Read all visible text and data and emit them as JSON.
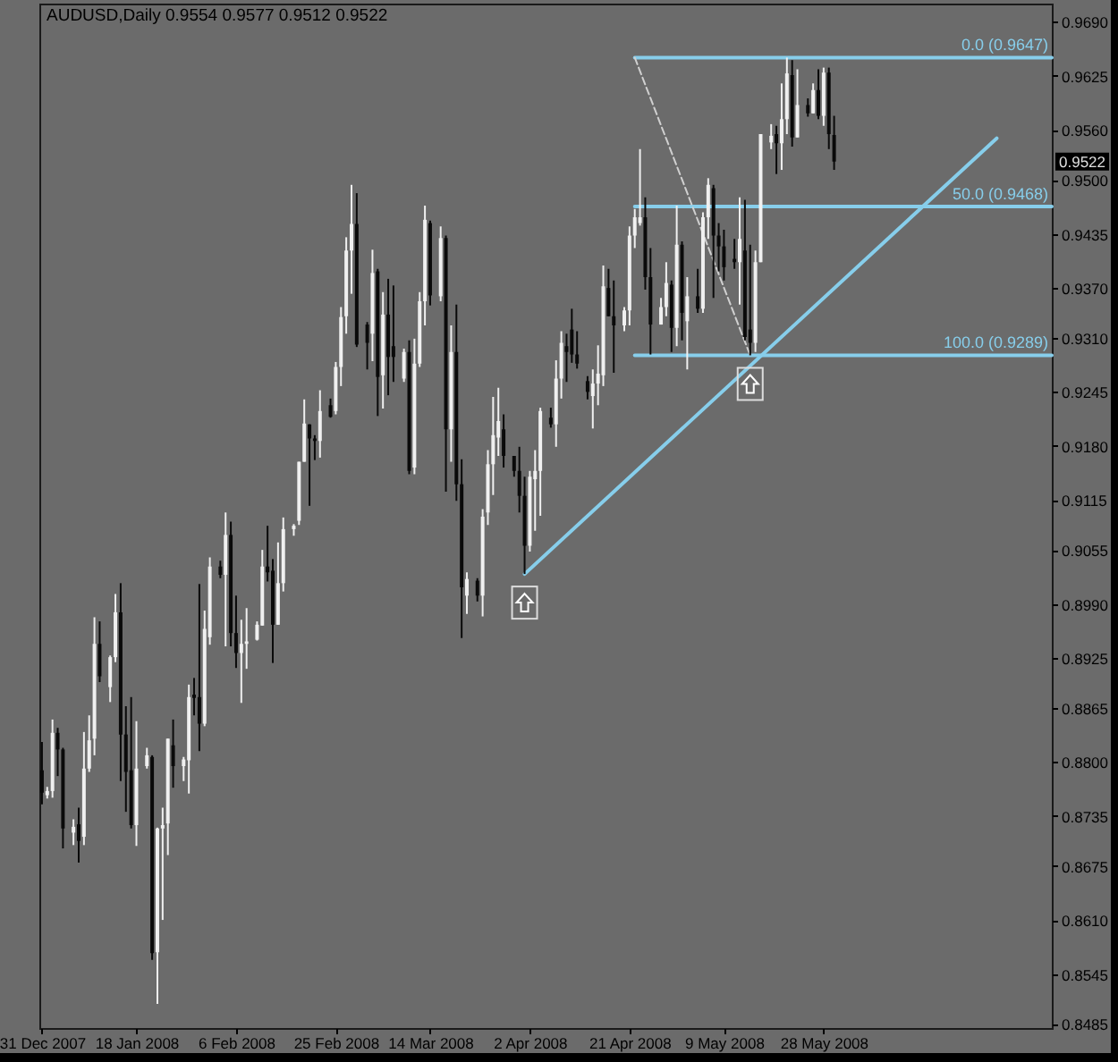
{
  "chart_data": {
    "type": "candlestick",
    "title": "AUDUSD,Daily 0.9554 0.9577 0.9512 0.9522",
    "x": [
      "2007-12-31",
      "2008-01-01",
      "2008-01-02",
      "2008-01-03",
      "2008-01-04",
      "2008-01-06",
      "2008-01-07",
      "2008-01-08",
      "2008-01-09",
      "2008-01-10",
      "2008-01-11",
      "2008-01-13",
      "2008-01-14",
      "2008-01-15",
      "2008-01-16",
      "2008-01-17",
      "2008-01-18",
      "2008-01-20",
      "2008-01-21",
      "2008-01-22",
      "2008-01-23",
      "2008-01-24",
      "2008-01-25",
      "2008-01-27",
      "2008-01-28",
      "2008-01-29",
      "2008-01-30",
      "2008-01-31",
      "2008-02-01",
      "2008-02-03",
      "2008-02-04",
      "2008-02-05",
      "2008-02-06",
      "2008-02-07",
      "2008-02-08",
      "2008-02-10",
      "2008-02-11",
      "2008-02-12",
      "2008-02-13",
      "2008-02-14",
      "2008-02-15",
      "2008-02-17",
      "2008-02-18",
      "2008-02-19",
      "2008-02-20",
      "2008-02-21",
      "2008-02-22",
      "2008-02-24",
      "2008-02-25",
      "2008-02-26",
      "2008-02-27",
      "2008-02-28",
      "2008-02-29",
      "2008-03-02",
      "2008-03-03",
      "2008-03-04",
      "2008-03-05",
      "2008-03-06",
      "2008-03-07",
      "2008-03-09",
      "2008-03-10",
      "2008-03-11",
      "2008-03-12",
      "2008-03-13",
      "2008-03-14",
      "2008-03-16",
      "2008-03-17",
      "2008-03-18",
      "2008-03-19",
      "2008-03-20",
      "2008-03-21",
      "2008-03-23",
      "2008-03-24",
      "2008-03-25",
      "2008-03-26",
      "2008-03-27",
      "2008-03-28",
      "2008-03-30",
      "2008-03-31",
      "2008-04-01",
      "2008-04-02",
      "2008-04-03",
      "2008-04-04",
      "2008-04-06",
      "2008-04-07",
      "2008-04-08",
      "2008-04-09",
      "2008-04-10",
      "2008-04-11",
      "2008-04-13",
      "2008-04-14",
      "2008-04-15",
      "2008-04-16",
      "2008-04-17",
      "2008-04-18",
      "2008-04-20",
      "2008-04-21",
      "2008-04-22",
      "2008-04-23",
      "2008-04-24",
      "2008-04-25",
      "2008-04-27",
      "2008-04-28",
      "2008-04-29",
      "2008-04-30",
      "2008-05-01",
      "2008-05-02",
      "2008-05-04",
      "2008-05-05",
      "2008-05-06",
      "2008-05-07",
      "2008-05-08",
      "2008-05-09",
      "2008-05-11",
      "2008-05-12",
      "2008-05-13",
      "2008-05-14",
      "2008-05-15",
      "2008-05-16",
      "2008-05-18",
      "2008-05-19",
      "2008-05-20",
      "2008-05-21",
      "2008-05-22",
      "2008-05-23",
      "2008-05-25",
      "2008-05-26",
      "2008-05-27",
      "2008-05-28",
      "2008-05-29",
      "2008-05-30"
    ],
    "ohlc": [
      [
        0.879,
        0.8824,
        0.8749,
        0.8763
      ],
      [
        0.876,
        0.877,
        0.8756,
        0.8765
      ],
      [
        0.8765,
        0.8851,
        0.8757,
        0.8835
      ],
      [
        0.8835,
        0.8841,
        0.8783,
        0.8815
      ],
      [
        0.8815,
        0.8817,
        0.8696,
        0.872
      ],
      [
        0.8715,
        0.8731,
        0.87,
        0.8722
      ],
      [
        0.8725,
        0.8745,
        0.8679,
        0.8705
      ],
      [
        0.871,
        0.8836,
        0.87,
        0.8792
      ],
      [
        0.8792,
        0.8856,
        0.8788,
        0.8826
      ],
      [
        0.8828,
        0.8974,
        0.8808,
        0.8942
      ],
      [
        0.8942,
        0.8969,
        0.8896,
        0.8903
      ],
      [
        0.889,
        0.8928,
        0.8872,
        0.8926
      ],
      [
        0.8926,
        0.9002,
        0.892,
        0.898
      ],
      [
        0.898,
        0.9015,
        0.8777,
        0.8833
      ],
      [
        0.8833,
        0.8867,
        0.874,
        0.8788
      ],
      [
        0.879,
        0.8878,
        0.872,
        0.8724
      ],
      [
        0.8724,
        0.8849,
        0.8699,
        0.8792
      ],
      [
        0.8795,
        0.8817,
        0.8792,
        0.8808
      ],
      [
        0.8806,
        0.8808,
        0.8562,
        0.857
      ],
      [
        0.8571,
        0.8721,
        0.8509,
        0.872
      ],
      [
        0.872,
        0.8745,
        0.861,
        0.8724
      ],
      [
        0.8726,
        0.8828,
        0.8688,
        0.8828
      ],
      [
        0.882,
        0.8851,
        0.8769,
        0.8795
      ],
      [
        0.8795,
        0.8806,
        0.8777,
        0.8803
      ],
      [
        0.8802,
        0.8893,
        0.8762,
        0.8878
      ],
      [
        0.8881,
        0.8901,
        0.8856,
        0.8877
      ],
      [
        0.8878,
        0.9014,
        0.8813,
        0.8846
      ],
      [
        0.8846,
        0.8982,
        0.8843,
        0.896
      ],
      [
        0.895,
        0.9046,
        0.8941,
        0.9035
      ],
      [
        0.9035,
        0.9042,
        0.9021,
        0.9025
      ],
      [
        0.9025,
        0.91,
        0.8939,
        0.9073
      ],
      [
        0.9073,
        0.9089,
        0.8939,
        0.8955
      ],
      [
        0.8955,
        0.9,
        0.8913,
        0.8931
      ],
      [
        0.8931,
        0.8971,
        0.8871,
        0.8942
      ],
      [
        0.8942,
        0.8985,
        0.8912,
        0.8945
      ],
      [
        0.8947,
        0.8969,
        0.8946,
        0.8965
      ],
      [
        0.8964,
        0.9055,
        0.8964,
        0.9035
      ],
      [
        0.9035,
        0.9084,
        0.9017,
        0.9028
      ],
      [
        0.903,
        0.9044,
        0.8919,
        0.8965
      ],
      [
        0.8965,
        0.9064,
        0.8965,
        0.9015
      ],
      [
        0.9015,
        0.9094,
        0.9005,
        0.908
      ],
      [
        0.908,
        0.9086,
        0.9072,
        0.9084
      ],
      [
        0.909,
        0.9161,
        0.9085,
        0.9161
      ],
      [
        0.9161,
        0.9236,
        0.9161,
        0.9207
      ],
      [
        0.9206,
        0.9206,
        0.9108,
        0.9189
      ],
      [
        0.9189,
        0.9193,
        0.9163,
        0.9186
      ],
      [
        0.9186,
        0.9247,
        0.9166,
        0.9222
      ],
      [
        0.9229,
        0.9237,
        0.9214,
        0.9215
      ],
      [
        0.9222,
        0.9281,
        0.9218,
        0.9275
      ],
      [
        0.9275,
        0.9347,
        0.9252,
        0.9335
      ],
      [
        0.9336,
        0.9431,
        0.9315,
        0.9415
      ],
      [
        0.9415,
        0.9494,
        0.9363,
        0.9447
      ],
      [
        0.9447,
        0.9484,
        0.9299,
        0.9302
      ],
      [
        0.9326,
        0.9329,
        0.9272,
        0.9304
      ],
      [
        0.9315,
        0.9416,
        0.9282,
        0.9388
      ],
      [
        0.939,
        0.9393,
        0.9216,
        0.9263
      ],
      [
        0.9265,
        0.9365,
        0.9225,
        0.9338
      ],
      [
        0.9338,
        0.9381,
        0.9241,
        0.9287
      ],
      [
        0.93,
        0.9373,
        0.9257,
        0.9287
      ],
      [
        0.9261,
        0.9297,
        0.9257,
        0.9293
      ],
      [
        0.9293,
        0.9307,
        0.9146,
        0.915
      ],
      [
        0.9154,
        0.9309,
        0.9146,
        0.9279
      ],
      [
        0.9279,
        0.9365,
        0.9275,
        0.9354
      ],
      [
        0.9354,
        0.9469,
        0.9325,
        0.9452
      ],
      [
        0.9448,
        0.9451,
        0.9349,
        0.9361
      ],
      [
        0.936,
        0.9444,
        0.9354,
        0.943
      ],
      [
        0.943,
        0.9433,
        0.9125,
        0.92
      ],
      [
        0.92,
        0.9325,
        0.9161,
        0.9293
      ],
      [
        0.9293,
        0.935,
        0.9114,
        0.9134
      ],
      [
        0.9134,
        0.9164,
        0.8949,
        0.901
      ],
      [
        0.9,
        0.9028,
        0.8978,
        0.902
      ],
      [
        0.9018,
        0.9021,
        0.8993,
        0.9
      ],
      [
        0.9,
        0.9104,
        0.8975,
        0.9095
      ],
      [
        0.91,
        0.9175,
        0.9085,
        0.9158
      ],
      [
        0.9158,
        0.9239,
        0.9121,
        0.9193
      ],
      [
        0.919,
        0.925,
        0.9168,
        0.921
      ],
      [
        0.92,
        0.9218,
        0.9154,
        0.9168
      ],
      [
        0.9168,
        0.9168,
        0.9143,
        0.915
      ],
      [
        0.915,
        0.9179,
        0.91,
        0.912
      ],
      [
        0.912,
        0.9143,
        0.9026,
        0.906
      ],
      [
        0.906,
        0.915,
        0.9053,
        0.9143
      ],
      [
        0.914,
        0.9175,
        0.9078,
        0.915
      ],
      [
        0.915,
        0.9226,
        0.9096,
        0.9222
      ],
      [
        0.9214,
        0.9226,
        0.9202,
        0.9206
      ],
      [
        0.9206,
        0.9283,
        0.9179,
        0.9261
      ],
      [
        0.9261,
        0.9318,
        0.9237,
        0.9304
      ],
      [
        0.93,
        0.9315,
        0.9257,
        0.9293
      ],
      [
        0.932,
        0.9345,
        0.928,
        0.929
      ],
      [
        0.929,
        0.9318,
        0.9273,
        0.9279
      ],
      [
        0.9258,
        0.9264,
        0.9236,
        0.9245
      ],
      [
        0.924,
        0.9272,
        0.9201,
        0.9255
      ],
      [
        0.9255,
        0.9301,
        0.9229,
        0.9267
      ],
      [
        0.9265,
        0.9397,
        0.9252,
        0.9372
      ],
      [
        0.937,
        0.9393,
        0.9336,
        0.9336
      ],
      [
        0.9336,
        0.9379,
        0.9268,
        0.9325
      ],
      [
        0.9325,
        0.9347,
        0.9318,
        0.9343
      ],
      [
        0.9343,
        0.9444,
        0.9325,
        0.9433
      ],
      [
        0.9433,
        0.9465,
        0.9418,
        0.9455
      ],
      [
        0.9448,
        0.9537,
        0.9445,
        0.9455
      ],
      [
        0.9455,
        0.9479,
        0.9368,
        0.9383
      ],
      [
        0.9383,
        0.9418,
        0.929,
        0.9326
      ],
      [
        0.9326,
        0.9358,
        0.9326,
        0.9347
      ],
      [
        0.9347,
        0.9401,
        0.9336,
        0.9376
      ],
      [
        0.9374,
        0.9379,
        0.9293,
        0.9322
      ],
      [
        0.9322,
        0.9469,
        0.93,
        0.9422
      ],
      [
        0.9422,
        0.9426,
        0.9307,
        0.934
      ],
      [
        0.933,
        0.9383,
        0.9272,
        0.936
      ],
      [
        0.936,
        0.9393,
        0.934,
        0.9345
      ],
      [
        0.9345,
        0.9461,
        0.934,
        0.9455
      ],
      [
        0.9455,
        0.9502,
        0.9429,
        0.9494
      ],
      [
        0.949,
        0.9494,
        0.9358,
        0.9433
      ],
      [
        0.9433,
        0.9448,
        0.939,
        0.942
      ],
      [
        0.942,
        0.944,
        0.9379,
        0.9395
      ],
      [
        0.9405,
        0.9429,
        0.9393,
        0.9401
      ],
      [
        0.9401,
        0.9479,
        0.935,
        0.9429
      ],
      [
        0.9415,
        0.9476,
        0.9307,
        0.9311
      ],
      [
        0.932,
        0.9422,
        0.9289,
        0.9304
      ],
      [
        0.9304,
        0.9415,
        0.9293,
        0.9401
      ],
      [
        0.9401,
        0.9555,
        0.9401,
        0.9555
      ],
      [
        0.9545,
        0.9567,
        0.9537,
        0.9553
      ],
      [
        0.9555,
        0.9565,
        0.9507,
        0.9544
      ],
      [
        0.9544,
        0.9616,
        0.9512,
        0.9573
      ],
      [
        0.9573,
        0.9647,
        0.9555,
        0.9628
      ],
      [
        0.9626,
        0.9644,
        0.954,
        0.9551
      ],
      [
        0.9551,
        0.9633,
        0.9551,
        0.959
      ],
      [
        0.959,
        0.9598,
        0.9576,
        0.958
      ],
      [
        0.958,
        0.9616,
        0.958,
        0.9608
      ],
      [
        0.9608,
        0.9633,
        0.9573,
        0.9577
      ],
      [
        0.9577,
        0.9635,
        0.9565,
        0.9629
      ],
      [
        0.9629,
        0.9635,
        0.9537,
        0.9555
      ],
      [
        0.9554,
        0.9577,
        0.9512,
        0.9522
      ]
    ],
    "colors": [
      "#0a0a0a",
      "#f0f0f0",
      "#f0f0f0",
      "#0a0a0a",
      "#0a0a0a",
      "#f0f0f0",
      "#0a0a0a",
      "#f0f0f0",
      "#f0f0f0",
      "#f0f0f0",
      "#0a0a0a",
      "#f0f0f0",
      "#f0f0f0",
      "#0a0a0a",
      "#0a0a0a",
      "#0a0a0a",
      "#f0f0f0",
      "#f0f0f0",
      "#0a0a0a",
      "#f0f0f0",
      "#f0f0f0",
      "#f0f0f0",
      "#0a0a0a",
      "#f0f0f0",
      "#f0f0f0",
      "#0a0a0a",
      "#0a0a0a",
      "#f0f0f0",
      "#f0f0f0",
      "#0a0a0a",
      "#f0f0f0",
      "#0a0a0a",
      "#0a0a0a",
      "#f0f0f0",
      "#f0f0f0",
      "#f0f0f0",
      "#f0f0f0",
      "#0a0a0a",
      "#0a0a0a",
      "#f0f0f0",
      "#f0f0f0",
      "#f0f0f0",
      "#f0f0f0",
      "#f0f0f0",
      "#0a0a0a",
      "#0a0a0a",
      "#f0f0f0",
      "#0a0a0a",
      "#f0f0f0",
      "#f0f0f0",
      "#f0f0f0",
      "#f0f0f0",
      "#0a0a0a",
      "#0a0a0a",
      "#f0f0f0",
      "#0a0a0a",
      "#f0f0f0",
      "#0a0a0a",
      "#0a0a0a",
      "#f0f0f0",
      "#0a0a0a",
      "#f0f0f0",
      "#f0f0f0",
      "#f0f0f0",
      "#0a0a0a",
      "#f0f0f0",
      "#0a0a0a",
      "#f0f0f0",
      "#0a0a0a",
      "#0a0a0a",
      "#f0f0f0",
      "#0a0a0a",
      "#f0f0f0",
      "#f0f0f0",
      "#f0f0f0",
      "#f0f0f0",
      "#0a0a0a",
      "#0a0a0a",
      "#0a0a0a",
      "#0a0a0a",
      "#f0f0f0",
      "#f0f0f0",
      "#f0f0f0",
      "#0a0a0a",
      "#f0f0f0",
      "#f0f0f0",
      "#0a0a0a",
      "#0a0a0a",
      "#0a0a0a",
      "#0a0a0a",
      "#f0f0f0",
      "#f0f0f0",
      "#f0f0f0",
      "#0a0a0a",
      "#0a0a0a",
      "#f0f0f0",
      "#f0f0f0",
      "#f0f0f0",
      "#f0f0f0",
      "#0a0a0a",
      "#0a0a0a",
      "#f0f0f0",
      "#f0f0f0",
      "#0a0a0a",
      "#f0f0f0",
      "#0a0a0a",
      "#f0f0f0",
      "#0a0a0a",
      "#f0f0f0",
      "#f0f0f0",
      "#0a0a0a",
      "#0a0a0a",
      "#0a0a0a",
      "#0a0a0a",
      "#f0f0f0",
      "#0a0a0a",
      "#0a0a0a",
      "#f0f0f0",
      "#f0f0f0",
      "#f0f0f0",
      "#0a0a0a",
      "#f0f0f0",
      "#f0f0f0",
      "#0a0a0a",
      "#f0f0f0",
      "#0a0a0a",
      "#f0f0f0",
      "#0a0a0a",
      "#f0f0f0",
      "#0a0a0a",
      "#0a0a0a"
    ],
    "series": [
      {
        "type": "line",
        "name": "0.0 (0.9647)",
        "color": "#87ceeb",
        "x": [
          "2008-04-22",
          "2008-07-10T12:00"
        ],
        "values": [
          0.9647,
          0.9647
        ]
      },
      {
        "type": "line",
        "name": "50.0 (0.9468)",
        "color": "#87ceeb",
        "x": [
          "2008-04-22",
          "2008-07-10T12:00"
        ],
        "values": [
          0.9468,
          0.9468
        ]
      },
      {
        "type": "line",
        "name": "100.0 (0.9289)",
        "color": "#87ceeb",
        "x": [
          "2008-04-22",
          "2008-07-10T12:00"
        ],
        "values": [
          0.9289,
          0.9289
        ]
      },
      {
        "type": "line",
        "color": "#d0d0d0",
        "line_style": "dashed",
        "x": [
          "2008-04-22",
          "2008-05-14"
        ],
        "values": [
          0.9647,
          0.9289
        ]
      },
      {
        "type": "line",
        "color": "#87ceeb",
        "x": [
          "2008-04-01",
          "2008-06-30"
        ],
        "values": [
          0.9026,
          0.955
        ]
      }
    ],
    "xlim": [
      "2007-12-30T12:00",
      "2008-07-10T12:00"
    ],
    "xticks": [
      {
        "value": "2007-12-31",
        "label": "31 Dec 2007"
      },
      {
        "value": "2008-01-18",
        "label": "18 Jan 2008"
      },
      {
        "value": "2008-02-06",
        "label": "6 Feb 2008"
      },
      {
        "value": "2008-02-25",
        "label": "25 Feb 2008"
      },
      {
        "value": "2008-03-14",
        "label": "14 Mar 2008"
      },
      {
        "value": "2008-04-02",
        "label": "2 Apr 2008"
      },
      {
        "value": "2008-04-21",
        "label": "21 Apr 2008"
      },
      {
        "value": "2008-05-09",
        "label": "9 May 2008"
      },
      {
        "value": "2008-05-28",
        "label": "28 May 2008"
      }
    ],
    "ylim": [
      0.848,
      0.9712
    ],
    "yticks": [
      {
        "value": 0.969,
        "label": "0.9690"
      },
      0.9625,
      {
        "value": 0.956,
        "label": "0.9560"
      },
      {
        "value": 0.95,
        "label": "0.9500"
      },
      0.9435,
      {
        "value": 0.937,
        "label": "0.9370"
      },
      {
        "value": 0.931,
        "label": "0.9310"
      },
      0.9245,
      {
        "value": 0.918,
        "label": "0.9180"
      },
      0.9115,
      0.9055,
      {
        "value": 0.899,
        "label": "0.8990"
      },
      0.8925,
      0.8865,
      {
        "value": 0.88,
        "label": "0.8800"
      },
      0.8735,
      0.8675,
      {
        "value": 0.861,
        "label": "0.8610"
      },
      0.8545,
      0.8485
    ],
    "annotations": [
      {
        "text": "0.9522",
        "y": 0.9522
      }
    ]
  }
}
